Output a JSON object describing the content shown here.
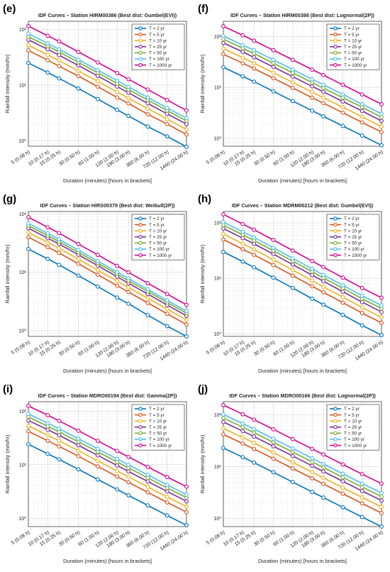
{
  "chart_data": [
    {
      "panel_label": "(e)",
      "type": "line",
      "title": "IDF Curves – Station HIRM00386  (Best dist: Gumbel(EVI))",
      "xlabel": "Duration (minutes)  [hours in brackets]",
      "ylabel": "Rainfall intensity (mm/hr)",
      "x_scale": "log",
      "y_scale": "log",
      "x": [
        5,
        10,
        15,
        30,
        60,
        120,
        180,
        360,
        720,
        1440
      ],
      "x_tick_labels": [
        "5 (0.08 h)",
        "10 (0.17 h)",
        "15 (0.25 h)",
        "30 (0.50 h)",
        "60 (1.00 h)",
        "120 (2.00 h)",
        "180 (3.00 h)",
        "360 (6.00 h)",
        "720 (12.00 h)",
        "1440 (24.00 h)"
      ],
      "ylim": [
        0.8,
        140
      ],
      "y_ticks": [
        "10⁰",
        "10¹",
        "10²"
      ],
      "legend_position": "top-right",
      "grid": true,
      "series": [
        {
          "name": "T = 2 yr",
          "color": "#0072BD",
          "values": [
            25,
            16.8,
            13.2,
            8.7,
            5.6,
            3.6,
            2.8,
            1.8,
            1.2,
            0.78
          ]
        },
        {
          "name": "T = 5 yr",
          "color": "#D95319",
          "values": [
            42,
            28,
            22,
            14.5,
            9.4,
            6.0,
            4.7,
            3.0,
            2.0,
            1.3
          ]
        },
        {
          "name": "T = 10 yr",
          "color": "#EDB120",
          "values": [
            52,
            35,
            27.5,
            18,
            11.7,
            7.5,
            5.8,
            3.8,
            2.45,
            1.6
          ]
        },
        {
          "name": "T = 25 yr",
          "color": "#7E2F8E",
          "values": [
            65,
            44,
            34.5,
            22.5,
            14.6,
            9.4,
            7.3,
            4.7,
            3.05,
            2.0
          ]
        },
        {
          "name": "T = 50 yr",
          "color": "#77AC30",
          "values": [
            74,
            50,
            39.5,
            25.7,
            16.7,
            10.7,
            8.3,
            5.4,
            3.5,
            2.28
          ]
        },
        {
          "name": "T = 100 yr",
          "color": "#4DBEEE",
          "values": [
            84,
            56,
            44,
            28.7,
            18.6,
            12.0,
            9.3,
            6.0,
            3.9,
            2.55
          ]
        },
        {
          "name": "T = 1000 yr",
          "color": "#D4008F",
          "values": [
            115,
            77,
            61,
            39.5,
            25.6,
            16.5,
            12.8,
            8.3,
            5.4,
            3.5
          ]
        }
      ]
    },
    {
      "panel_label": "(f)",
      "type": "line",
      "title": "IDF Curves – Station HIRM00388  (Best dist: Lognormal(2P))",
      "xlabel": "Duration (minutes)  [hours in brackets]",
      "ylabel": "Rainfall intensity (mm/hr)",
      "x_scale": "log",
      "y_scale": "log",
      "x": [
        5,
        10,
        15,
        30,
        60,
        120,
        180,
        360,
        720,
        1440
      ],
      "x_tick_labels": [
        "5 (0.08 h)",
        "10 (0.17 h)",
        "15 (0.25 h)",
        "30 (0.50 h)",
        "60 (1.00 h)",
        "120 (2.00 h)",
        "180 (3.00 h)",
        "360 (6.00 h)",
        "720 (12.00 h)",
        "1440 (24.00 h)"
      ],
      "ylim": [
        0.7,
        200
      ],
      "y_ticks": [
        "10⁰",
        "10¹",
        "10²"
      ],
      "legend_position": "top-right",
      "grid": true,
      "series": [
        {
          "name": "T = 2 yr",
          "color": "#0072BD",
          "values": [
            25,
            16.5,
            13,
            8.4,
            5.4,
            3.5,
            2.7,
            1.75,
            1.13,
            0.73
          ]
        },
        {
          "name": "T = 5 yr",
          "color": "#D95319",
          "values": [
            45,
            30,
            23.5,
            15.2,
            9.8,
            6.3,
            4.9,
            3.2,
            2.05,
            1.33
          ]
        },
        {
          "name": "T = 10 yr",
          "color": "#EDB120",
          "values": [
            58,
            38.5,
            30,
            19.5,
            12.6,
            8.1,
            6.3,
            4.1,
            2.65,
            1.7
          ]
        },
        {
          "name": "T = 25 yr",
          "color": "#7E2F8E",
          "values": [
            75,
            50,
            39,
            25.3,
            16.3,
            10.5,
            8.2,
            5.3,
            3.45,
            2.2
          ]
        },
        {
          "name": "T = 50 yr",
          "color": "#77AC30",
          "values": [
            89,
            59,
            46.5,
            30,
            19.4,
            12.5,
            9.7,
            6.3,
            4.1,
            2.6
          ]
        },
        {
          "name": "T = 100 yr",
          "color": "#4DBEEE",
          "values": [
            103,
            68,
            54,
            35,
            22.5,
            14.5,
            11.3,
            7.3,
            4.7,
            3.05
          ]
        },
        {
          "name": "T = 1000 yr",
          "color": "#D4008F",
          "values": [
            160,
            106,
            83,
            54,
            35,
            22.5,
            17.5,
            11.3,
            7.3,
            4.7
          ]
        }
      ]
    },
    {
      "panel_label": "(g)",
      "type": "line",
      "title": "IDF Curves – Station HIRS00379  (Best dist: Weibull(2P))",
      "xlabel": "Duration (minutes)  [hours in brackets]",
      "ylabel": "Rainfall intensity (mm/hr)",
      "x_scale": "log",
      "y_scale": "log",
      "x": [
        5,
        10,
        15,
        30,
        60,
        120,
        180,
        360,
        720,
        1440
      ],
      "x_tick_labels": [
        "5 (0.08 h)",
        "10 (0.17 h)",
        "15 (0.25 h)",
        "30 (0.50 h)",
        "60 (1.00 h)",
        "120 (2.00 h)",
        "180 (3.00 h)",
        "360 (6.00 h)",
        "720 (12.00 h)",
        "1440 (24.00 h)"
      ],
      "ylim": [
        0.8,
        110
      ],
      "y_ticks": [
        "10⁰",
        "10¹",
        "10²"
      ],
      "legend_position": "top-right",
      "grid": true,
      "series": [
        {
          "name": "T = 2 yr",
          "color": "#0072BD",
          "values": [
            25,
            17,
            13.4,
            8.8,
            5.7,
            3.7,
            2.9,
            1.85,
            1.2,
            0.8
          ]
        },
        {
          "name": "T = 5 yr",
          "color": "#D95319",
          "values": [
            40,
            27,
            21.5,
            14,
            9.1,
            5.9,
            4.6,
            3.0,
            1.95,
            1.28
          ]
        },
        {
          "name": "T = 10 yr",
          "color": "#EDB120",
          "values": [
            48,
            32.5,
            25.7,
            16.8,
            10.9,
            7.1,
            5.5,
            3.6,
            2.35,
            1.53
          ]
        },
        {
          "name": "T = 25 yr",
          "color": "#7E2F8E",
          "values": [
            57,
            38.5,
            30.5,
            20,
            13,
            8.4,
            6.5,
            4.25,
            2.75,
            1.8
          ]
        },
        {
          "name": "T = 50 yr",
          "color": "#77AC30",
          "values": [
            63,
            42.5,
            33.5,
            22,
            14.3,
            9.3,
            7.2,
            4.7,
            3.05,
            2.0
          ]
        },
        {
          "name": "T = 100 yr",
          "color": "#4DBEEE",
          "values": [
            69,
            46.5,
            36.8,
            24,
            15.6,
            10.1,
            7.9,
            5.1,
            3.3,
            2.18
          ]
        },
        {
          "name": "T = 1000 yr",
          "color": "#D4008F",
          "values": [
            88,
            59,
            47,
            30.5,
            19.9,
            12.9,
            10,
            6.5,
            4.25,
            2.78
          ]
        }
      ]
    },
    {
      "panel_label": "(h)",
      "type": "line",
      "title": "IDF Curves – Station MDRM00212  (Best dist: Gumbel(EVI))",
      "xlabel": "Duration (minutes)  [hours in brackets]",
      "ylabel": "Rainfall intensity (mm/hr)",
      "x_scale": "log",
      "y_scale": "log",
      "x": [
        5,
        10,
        15,
        30,
        60,
        120,
        180,
        360,
        720,
        1440
      ],
      "x_tick_labels": [
        "5 (0.08 h)",
        "10 (0.17 h)",
        "15 (0.25 h)",
        "30 (0.50 h)",
        "60 (1.00 h)",
        "120 (2.00 h)",
        "180 (3.00 h)",
        "360 (6.00 h)",
        "720 (12.00 h)",
        "1440 (24.00 h)"
      ],
      "ylim": [
        0.9,
        160
      ],
      "y_ticks": [
        "10⁰",
        "10¹",
        "10²"
      ],
      "legend_position": "top-right",
      "grid": true,
      "series": [
        {
          "name": "T = 2 yr",
          "color": "#0072BD",
          "values": [
            30,
            20,
            15.8,
            10.3,
            6.7,
            4.3,
            3.35,
            2.2,
            1.42,
            0.95
          ]
        },
        {
          "name": "T = 5 yr",
          "color": "#D95319",
          "values": [
            50,
            33.5,
            26.5,
            17.3,
            11.2,
            7.2,
            5.6,
            3.65,
            2.37,
            1.58
          ]
        },
        {
          "name": "T = 10 yr",
          "color": "#EDB120",
          "values": [
            63,
            42,
            33.2,
            21.7,
            14.1,
            9.1,
            7.05,
            4.6,
            2.98,
            1.98
          ]
        },
        {
          "name": "T = 25 yr",
          "color": "#7E2F8E",
          "values": [
            79,
            53,
            41.8,
            27.3,
            17.7,
            11.4,
            8.85,
            5.75,
            3.73,
            2.48
          ]
        },
        {
          "name": "T = 50 yr",
          "color": "#77AC30",
          "values": [
            91,
            61,
            48,
            31.4,
            20.4,
            13.2,
            10.2,
            6.65,
            4.3,
            2.87
          ]
        },
        {
          "name": "T = 100 yr",
          "color": "#4DBEEE",
          "values": [
            103,
            69,
            54.5,
            35.5,
            23,
            14.9,
            11.5,
            7.5,
            4.87,
            3.25
          ]
        },
        {
          "name": "T = 1000 yr",
          "color": "#D4008F",
          "values": [
            142,
            95,
            75,
            49,
            31.7,
            20.5,
            15.9,
            10.3,
            6.7,
            4.47
          ]
        }
      ]
    },
    {
      "panel_label": "(i)",
      "type": "line",
      "title": "IDF Curves – Station MDRO00194  (Best dist: Gamma(2P))",
      "xlabel": "Duration (minutes)  [hours in brackets]",
      "ylabel": "Rainfall intensity (mm/hr)",
      "x_scale": "log",
      "y_scale": "log",
      "x": [
        5,
        10,
        15,
        30,
        60,
        120,
        180,
        360,
        720,
        1440
      ],
      "x_tick_labels": [
        "5 (0.08 h)",
        "10 (0.17 h)",
        "15 (0.25 h)",
        "30 (0.50 h)",
        "60 (1.00 h)",
        "120 (2.00 h)",
        "180 (3.00 h)",
        "360 (6.00 h)",
        "720 (12.00 h)",
        "1440 (24.00 h)"
      ],
      "ylim": [
        0.7,
        150
      ],
      "y_ticks": [
        "10⁰",
        "10¹",
        "10²"
      ],
      "legend_position": "top-right",
      "grid": true,
      "series": [
        {
          "name": "T = 2 yr",
          "color": "#0072BD",
          "values": [
            24,
            16,
            12.6,
            8.2,
            5.3,
            3.45,
            2.68,
            1.74,
            1.13,
            0.74
          ]
        },
        {
          "name": "T = 5 yr",
          "color": "#D95319",
          "values": [
            42,
            28,
            22,
            14.4,
            9.3,
            6.0,
            4.7,
            3.05,
            1.98,
            1.3
          ]
        },
        {
          "name": "T = 10 yr",
          "color": "#EDB120",
          "values": [
            53,
            35.5,
            28,
            18.2,
            11.8,
            7.65,
            5.95,
            3.86,
            2.5,
            1.65
          ]
        },
        {
          "name": "T = 25 yr",
          "color": "#7E2F8E",
          "values": [
            67,
            45,
            35.5,
            23,
            14.9,
            9.65,
            7.5,
            4.87,
            3.16,
            2.08
          ]
        },
        {
          "name": "T = 50 yr",
          "color": "#77AC30",
          "values": [
            78,
            52,
            41,
            26.8,
            17.4,
            11.25,
            8.75,
            5.68,
            3.68,
            2.43
          ]
        },
        {
          "name": "T = 100 yr",
          "color": "#4DBEEE",
          "values": [
            89,
            59.5,
            47,
            30.5,
            19.8,
            12.8,
            9.95,
            6.46,
            4.2,
            2.76
          ]
        },
        {
          "name": "T = 1000 yr",
          "color": "#D4008F",
          "values": [
            125,
            84,
            66,
            43,
            27.9,
            18,
            14,
            9.1,
            5.9,
            3.9
          ]
        }
      ]
    },
    {
      "panel_label": "(j)",
      "type": "line",
      "title": "IDF Curves – Station MDRO00166  (Best dist: Lognormal(2P))",
      "xlabel": "Duration (minutes)  [hours in brackets]",
      "ylabel": "Rainfall intensity (mm/hr)",
      "x_scale": "log",
      "y_scale": "log",
      "x": [
        5,
        10,
        15,
        30,
        60,
        120,
        180,
        360,
        720,
        1440
      ],
      "x_tick_labels": [
        "5 (0.08 h)",
        "10 (0.17 h)",
        "15 (0.25 h)",
        "30 (0.50 h)",
        "60 (1.00 h)",
        "120 (2.00 h)",
        "180 (3.00 h)",
        "360 (6.00 h)",
        "720 (12.00 h)",
        "1440 (24.00 h)"
      ],
      "ylim": [
        0.7,
        180
      ],
      "y_ticks": [
        "10⁰",
        "10¹",
        "10²"
      ],
      "legend_position": "top-right",
      "grid": true,
      "series": [
        {
          "name": "T = 2 yr",
          "color": "#0072BD",
          "values": [
            23,
            15.3,
            12,
            7.8,
            5.05,
            3.27,
            2.54,
            1.65,
            1.07,
            0.7
          ]
        },
        {
          "name": "T = 5 yr",
          "color": "#D95319",
          "values": [
            42,
            28,
            22,
            14.3,
            9.25,
            6.0,
            4.65,
            3.02,
            1.96,
            1.28
          ]
        },
        {
          "name": "T = 10 yr",
          "color": "#EDB120",
          "values": [
            55,
            36.7,
            28.8,
            18.7,
            12.1,
            7.85,
            6.1,
            3.95,
            2.56,
            1.68
          ]
        },
        {
          "name": "T = 25 yr",
          "color": "#7E2F8E",
          "values": [
            73,
            48.7,
            38.2,
            24.8,
            16.1,
            10.4,
            8.1,
            5.25,
            3.4,
            2.23
          ]
        },
        {
          "name": "T = 50 yr",
          "color": "#77AC30",
          "values": [
            87,
            58,
            45.5,
            29.6,
            19.2,
            12.4,
            9.65,
            6.25,
            4.05,
            2.66
          ]
        },
        {
          "name": "T = 100 yr",
          "color": "#4DBEEE",
          "values": [
            102,
            68,
            53.5,
            34.7,
            22.5,
            14.6,
            11.3,
            7.33,
            4.75,
            3.12
          ]
        },
        {
          "name": "T = 1000 yr",
          "color": "#D4008F",
          "values": [
            155,
            103,
            81,
            52.7,
            34.2,
            22.1,
            17.2,
            11.1,
            7.2,
            4.73
          ]
        }
      ]
    }
  ]
}
